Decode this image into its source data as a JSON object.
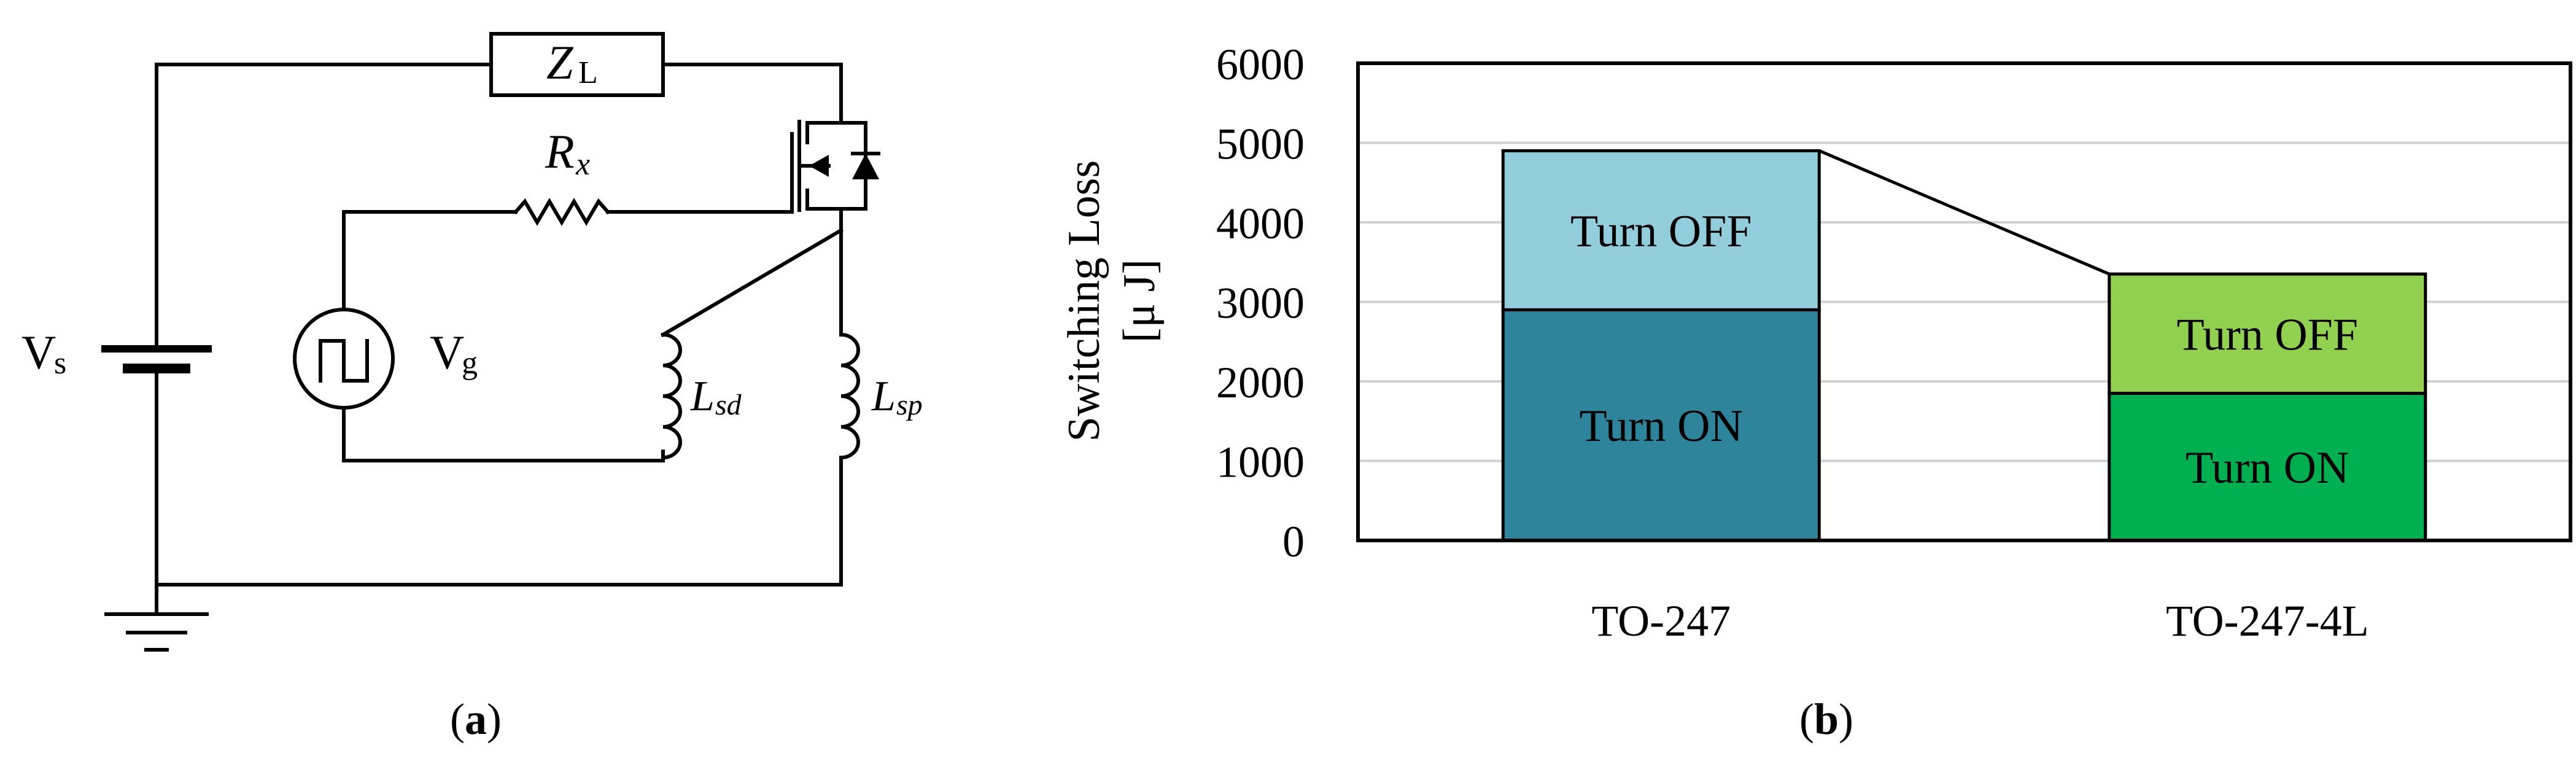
{
  "panel_a": {
    "caption_open": "(",
    "caption_letter": "a",
    "caption_close": ")",
    "component_load": "Z",
    "component_load_sub": "L",
    "component_resistor": "R",
    "component_resistor_sub": "x",
    "supply_label": "V",
    "supply_label_sub": "s",
    "gate_source_label": "V",
    "gate_source_label_sub": "g",
    "inductor_sd": "L",
    "inductor_sd_sub": "sd",
    "inductor_sp": "L",
    "inductor_sp_sub": "sp"
  },
  "panel_b": {
    "caption_open": "(",
    "caption_letter": "b",
    "caption_close": ")"
  },
  "chart_data": {
    "type": "bar",
    "stacked": true,
    "categories": [
      "TO-247",
      "TO-247-4L"
    ],
    "ylabel_line1": "Switching Loss",
    "ylabel_line2": "[μ J]",
    "ylim": [
      0,
      6000
    ],
    "yticks": [
      "0",
      "1000",
      "2000",
      "3000",
      "4000",
      "5000",
      "6000"
    ],
    "grid": true,
    "series": [
      {
        "name": "Turn ON",
        "values": [
          2900,
          1850
        ],
        "colors": [
          "#2e849a",
          "#00b050"
        ]
      },
      {
        "name": "Turn OFF",
        "values": [
          2000,
          1500
        ],
        "colors": [
          "#92cddc",
          "#92d050"
        ]
      }
    ],
    "connector_line": true
  }
}
